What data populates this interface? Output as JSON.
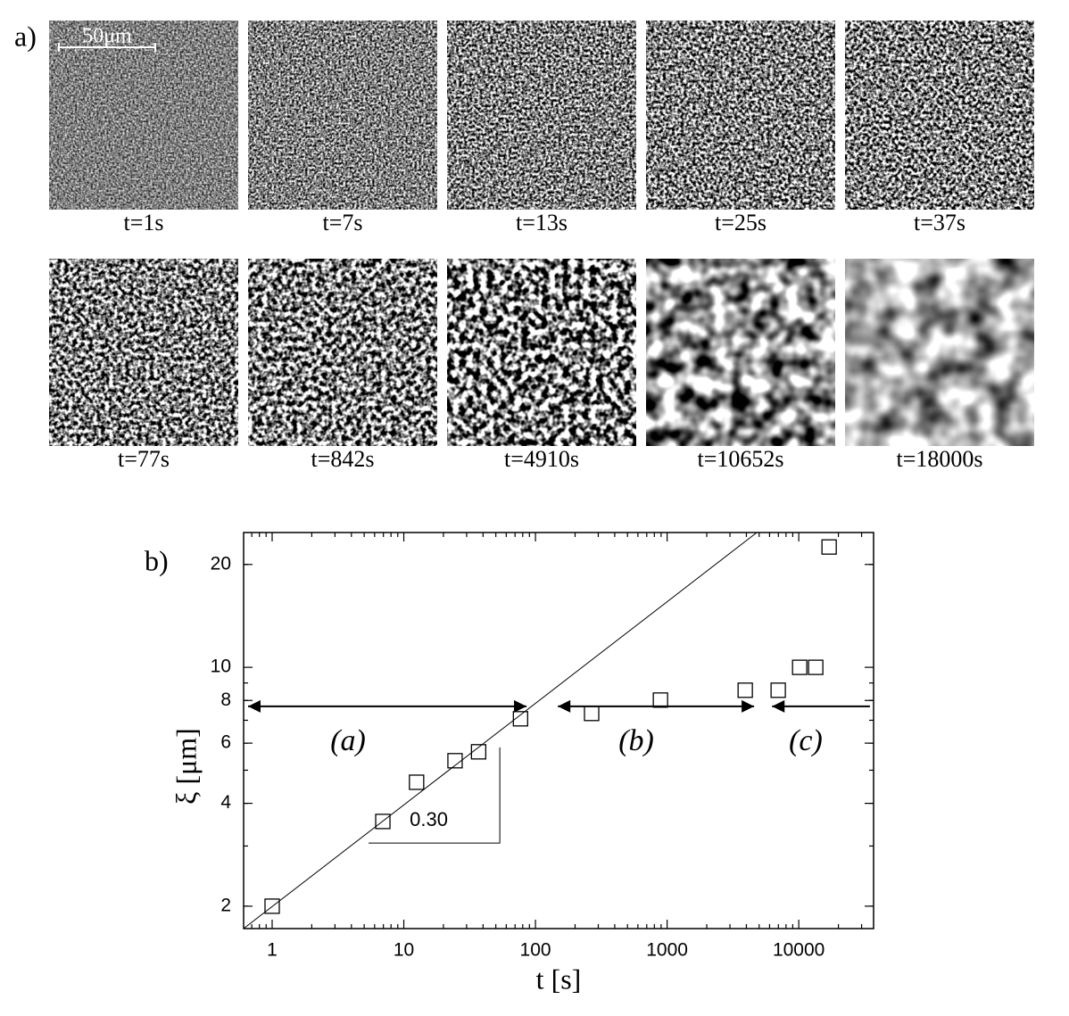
{
  "panel_a": {
    "label": "a)",
    "scale_bar": "50μm",
    "frames": [
      "t=1s",
      "t=7s",
      "t=13s",
      "t=25s",
      "t=37s",
      "t=77s",
      "t=842s",
      "t=4910s",
      "t=10652s",
      "t=18000s"
    ]
  },
  "chart_data": {
    "type": "scatter",
    "panel_label": "b)",
    "xlabel": "t [s]",
    "ylabel": "ξ [μm]",
    "xscale": "log",
    "yscale": "log",
    "xlim": [
      0.607,
      37000
    ],
    "ylim": [
      1.72,
      24.8
    ],
    "xticks": [
      1,
      10,
      100,
      1000,
      10000
    ],
    "yticks": [
      2,
      4,
      6,
      8,
      10,
      20
    ],
    "series": [
      {
        "color": "#000000",
        "x": [
          1,
          6.93,
          12.5,
          24.5,
          37,
          77,
          267,
          890,
          3920,
          6980,
          10160,
          13450,
          17000
        ],
        "values": [
          2,
          3.54,
          4.61,
          5.33,
          5.66,
          7.07,
          7.33,
          8.02,
          8.57,
          8.57,
          10,
          10,
          22.5
        ]
      }
    ],
    "fit_line": {
      "x": [
        0.607,
        4800
      ],
      "y": [
        1.72,
        24.8
      ]
    },
    "slope_label": "0.30",
    "slope_triangle": {
      "x": [
        5.4,
        53.6
      ],
      "y": [
        3.06,
        5.83
      ]
    },
    "regimes": [
      {
        "label": "(a)",
        "x": [
          0.656,
          85.5
        ],
        "y": 7.69,
        "heads": "both",
        "label_x": 3.77,
        "label_y": 6.0
      },
      {
        "label": "(b)",
        "x": [
          148,
          4580
        ],
        "y": 7.69,
        "heads": "both",
        "label_x": 583,
        "label_y": 6.0
      },
      {
        "label": "(c)",
        "x": [
          6270,
          34700
        ],
        "y": 7.69,
        "heads": "left",
        "label_x": 11300,
        "label_y": 6.0
      }
    ]
  }
}
